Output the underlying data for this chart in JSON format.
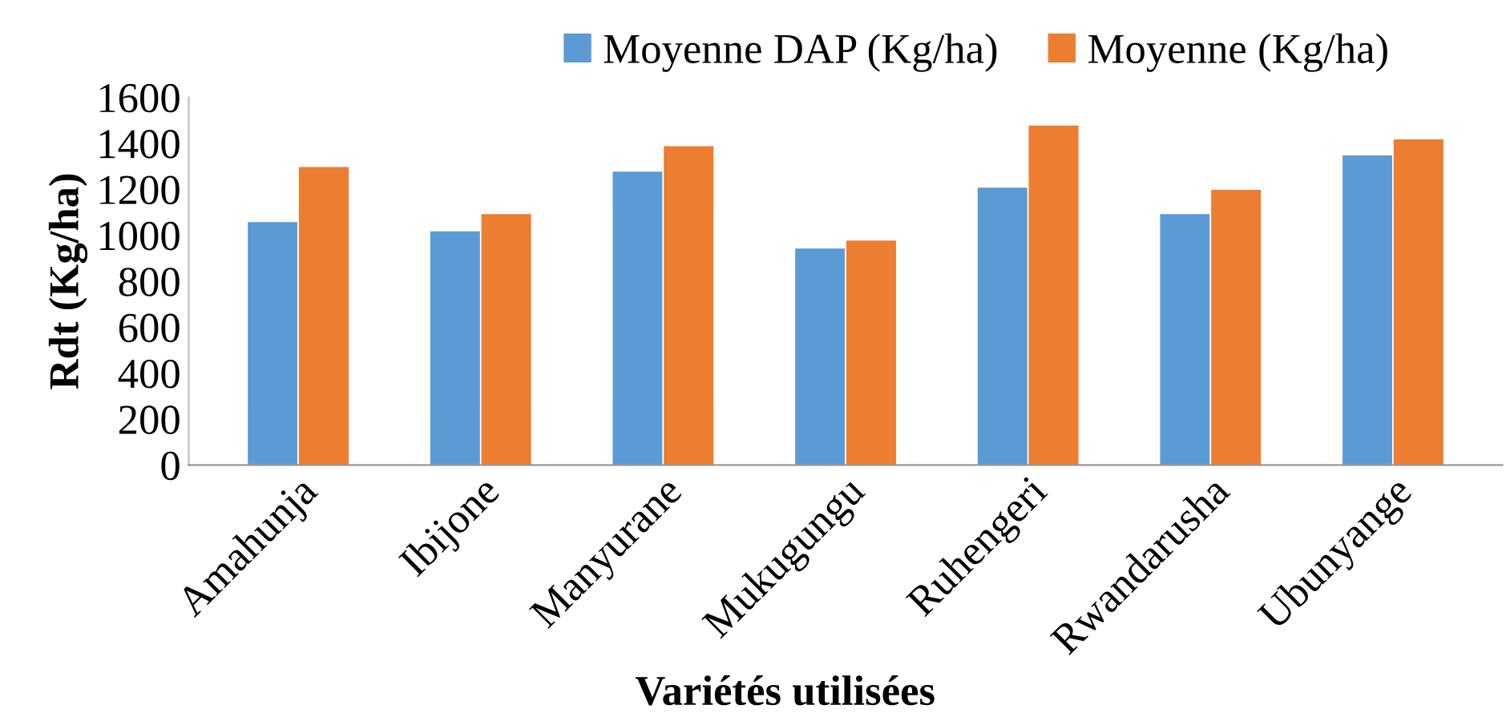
{
  "chart_data": {
    "type": "bar",
    "categories": [
      "Amahunja",
      "Ibijone",
      "Manyurane",
      "Mukugungu",
      "Ruhengeri",
      "Rwandarusha",
      "Ubunyange"
    ],
    "series": [
      {
        "name": "Moyenne DAP (Kg/ha)",
        "color": "#5b9bd5",
        "values": [
          1060,
          1020,
          1280,
          945,
          1210,
          1095,
          1350
        ]
      },
      {
        "name": "Moyenne (Kg/ha)",
        "color": "#ed7d31",
        "values": [
          1300,
          1095,
          1390,
          980,
          1480,
          1200,
          1420
        ]
      }
    ],
    "xlabel": "Variétés utilisées",
    "ylabel": "Rdt (Kg/ha)",
    "ylim": [
      0,
      1600
    ],
    "yticks": [
      0,
      200,
      400,
      600,
      800,
      1000,
      1200,
      1400,
      1600
    ],
    "grid": false,
    "legend": "top"
  }
}
